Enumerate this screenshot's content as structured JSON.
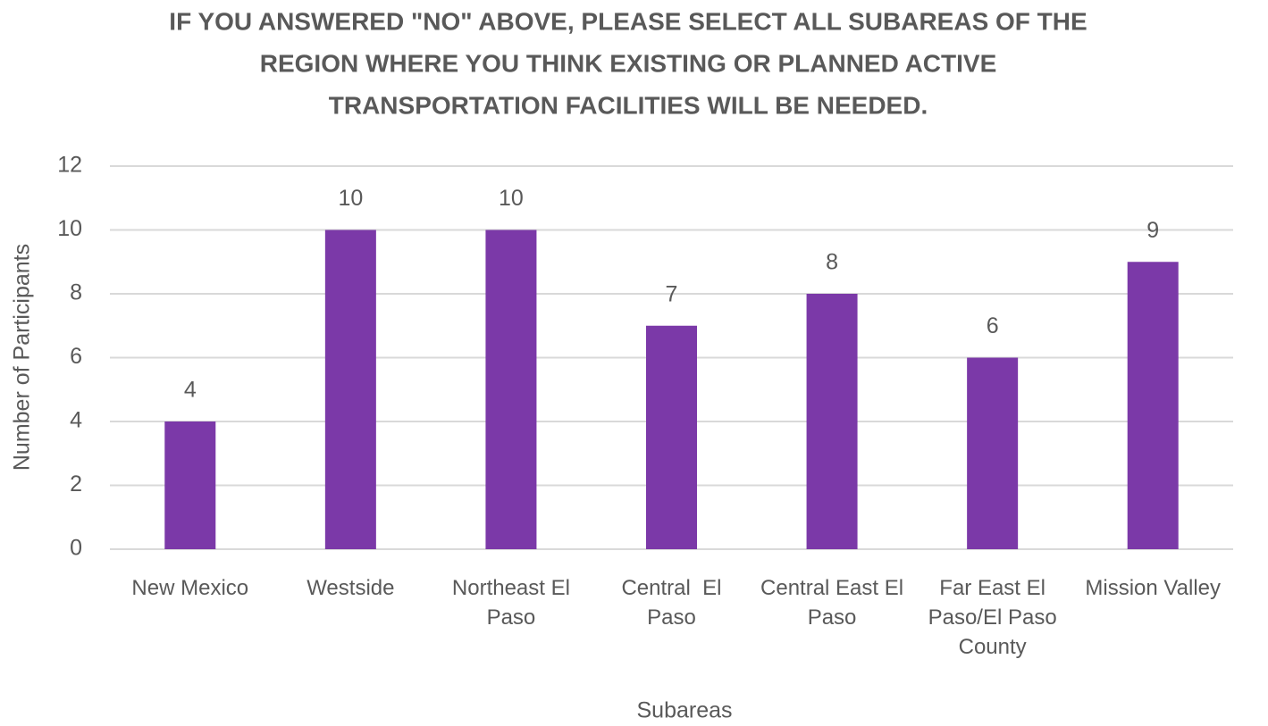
{
  "chart_data": {
    "type": "bar",
    "title": [
      "IF YOU ANSWERED \"NO\" ABOVE, PLEASE SELECT ALL SUBAREAS OF THE",
      "REGION WHERE YOU THINK EXISTING OR PLANNED ACTIVE",
      "TRANSPORTATION FACILITIES WILL BE NEEDED."
    ],
    "x_label": "Subareas",
    "y_label": "Number of Participants",
    "categories": [
      "New Mexico",
      "Westside",
      "Northeast El Paso",
      "Central  El Paso",
      "Central East El Paso",
      "Far East El Paso/El Paso County",
      "Mission Valley"
    ],
    "values": [
      4,
      10,
      10,
      7,
      8,
      6,
      9
    ],
    "color": "#7b39a8",
    "ylim": [
      0,
      12
    ],
    "yticks": [
      0,
      2,
      4,
      6,
      8,
      10,
      12
    ],
    "grid": true
  }
}
